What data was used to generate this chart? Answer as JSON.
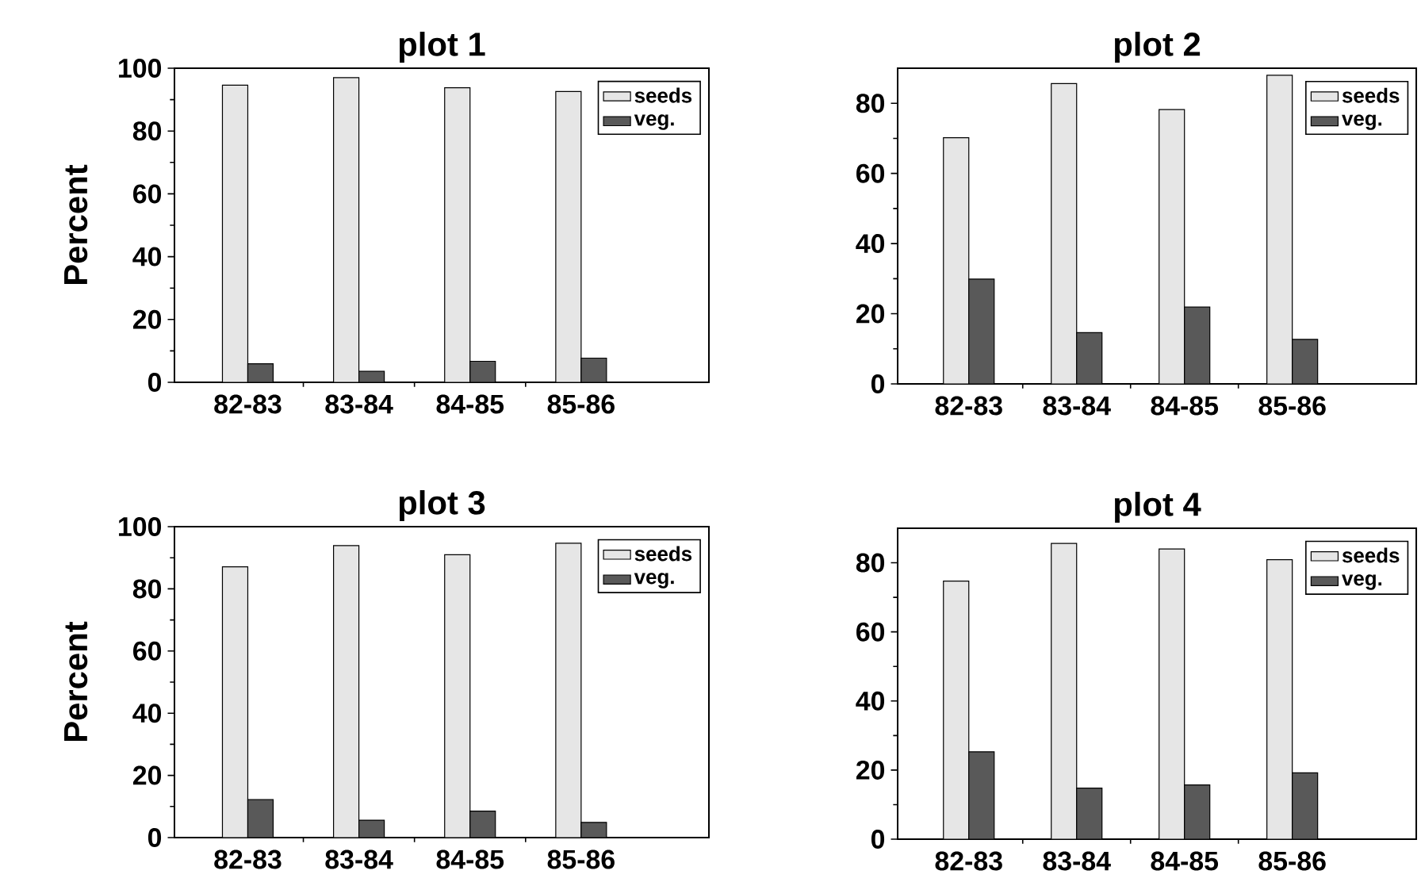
{
  "chart_data": [
    {
      "type": "bar",
      "title": "plot 1",
      "ylabel": "Percent",
      "categories": [
        "82-83",
        "83-84",
        "84-85",
        "85-86"
      ],
      "series": [
        {
          "name": "seeds",
          "color": "#e6e6e6",
          "values": [
            94.6,
            97,
            93.8,
            92.6
          ]
        },
        {
          "name": "veg.",
          "color": "#595959",
          "values": [
            5.9,
            3.5,
            6.7,
            7.7
          ]
        }
      ],
      "ylim": [
        0,
        100
      ],
      "yticks": [
        0,
        20,
        40,
        60,
        80,
        100
      ],
      "legend": "top right"
    },
    {
      "type": "bar",
      "title": "plot 2",
      "categories": [
        "82-83",
        "83-84",
        "84-85",
        "85-86"
      ],
      "series": [
        {
          "name": "seeds",
          "color": "#e6e6e6",
          "values": [
            70.2,
            85.6,
            78.2,
            88
          ]
        },
        {
          "name": "veg.",
          "color": "#595959",
          "values": [
            29.9,
            14.6,
            21.9,
            12.7
          ]
        }
      ],
      "ylim": [
        0,
        90
      ],
      "yticks": [
        0,
        20,
        40,
        60,
        80
      ],
      "legend": "top right"
    },
    {
      "type": "bar",
      "title": "plot 3",
      "ylabel": "Percent",
      "categories": [
        "82-83",
        "83-84",
        "84-85",
        "85-86"
      ],
      "series": [
        {
          "name": "seeds",
          "color": "#e6e6e6",
          "values": [
            87.1,
            93.9,
            91,
            94.7
          ]
        },
        {
          "name": "veg.",
          "color": "#595959",
          "values": [
            12.2,
            5.6,
            8.5,
            4.9
          ]
        }
      ],
      "ylim": [
        0,
        100
      ],
      "yticks": [
        0,
        20,
        40,
        60,
        80,
        100
      ],
      "legend": "top right"
    },
    {
      "type": "bar",
      "title": "plot 4",
      "categories": [
        "82-83",
        "83-84",
        "84-85",
        "85-86"
      ],
      "series": [
        {
          "name": "seeds",
          "color": "#e6e6e6",
          "values": [
            74.7,
            85.6,
            84,
            80.9
          ]
        },
        {
          "name": "veg.",
          "color": "#595959",
          "values": [
            25.3,
            14.8,
            15.7,
            19.2
          ]
        }
      ],
      "ylim": [
        0,
        90
      ],
      "yticks": [
        0,
        20,
        40,
        60,
        80
      ],
      "legend": "top right"
    }
  ]
}
